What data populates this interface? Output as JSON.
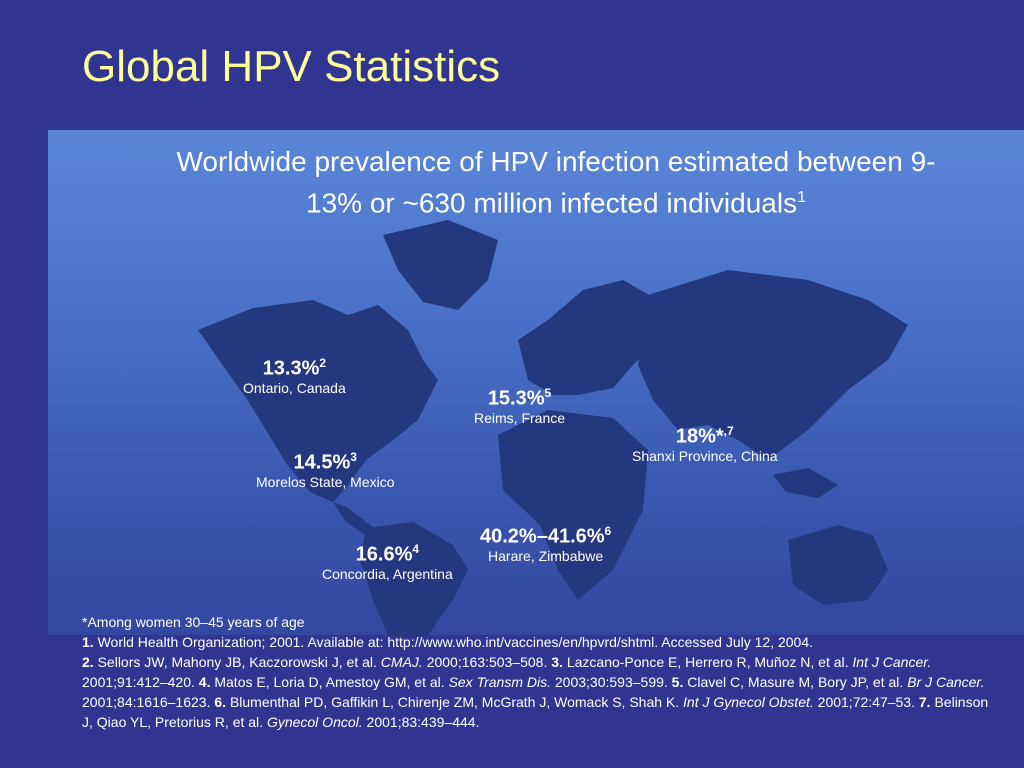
{
  "slide": {
    "title": "Global HPV Statistics",
    "headline_line1": "Worldwide prevalence of HPV infection estimated between 9-",
    "headline_line2": "13% or ~630 million infected individuals",
    "headline_sup": "1"
  },
  "stats": [
    {
      "value": "13.3%",
      "sup": "2",
      "location": "Ontario, Canada"
    },
    {
      "value": "14.5%",
      "sup": "3",
      "location": "Morelos State, Mexico"
    },
    {
      "value": "16.6%",
      "sup": "4",
      "location": "Concordia, Argentina"
    },
    {
      "value": "15.3%",
      "sup": "5",
      "location": "Reims, France"
    },
    {
      "value": "40.2%–41.6%",
      "sup": "6",
      "location": "Harare, Zimbabwe"
    },
    {
      "value": "18%*",
      "sup": ",7",
      "location": "Shanxi Province, China"
    }
  ],
  "notes": {
    "footnote": "*Among women 30–45 years of age",
    "refs": [
      {
        "num": "1.",
        "text": "World Health Organization; 2001. Available at: http://www.who.int/vaccines/en/hpvrd/shtml. Accessed July 12, 2004."
      },
      {
        "num": "2.",
        "pre": "Sellors JW, Mahony JB, Kaczorowski J, et al.",
        "journal": "CMAJ.",
        "post": "2000;163:503–508."
      },
      {
        "num": "3.",
        "pre": "Lazcano-Ponce E, Herrero R, Muñoz N, et al.",
        "journal": "Int J Cancer.",
        "post": "2001;91:412–420."
      },
      {
        "num": "4.",
        "pre": "Matos E, Loria D, Amestoy GM, et al.",
        "journal": "Sex Transm Dis.",
        "post": "2003;30:593–599."
      },
      {
        "num": "5.",
        "pre": "Clavel C, Masure M, Bory JP, et al.",
        "journal": "Br J Cancer.",
        "post": "2001;84:1616–1623."
      },
      {
        "num": "6.",
        "pre": "Blumenthal PD, Gaffikin L, Chirenje ZM, McGrath J, Womack S, Shah K.",
        "journal": "Int J Gynecol Obstet.",
        "post": "2001;72:47–53."
      },
      {
        "num": "7.",
        "pre": "Belinson J, Qiao YL, Pretorius R, et al.",
        "journal": "Gynecol Oncol.",
        "post": "2001;83:439–444."
      }
    ]
  },
  "colors": {
    "background": "#2f3590",
    "title": "#ffff99",
    "land": "#23387e"
  }
}
